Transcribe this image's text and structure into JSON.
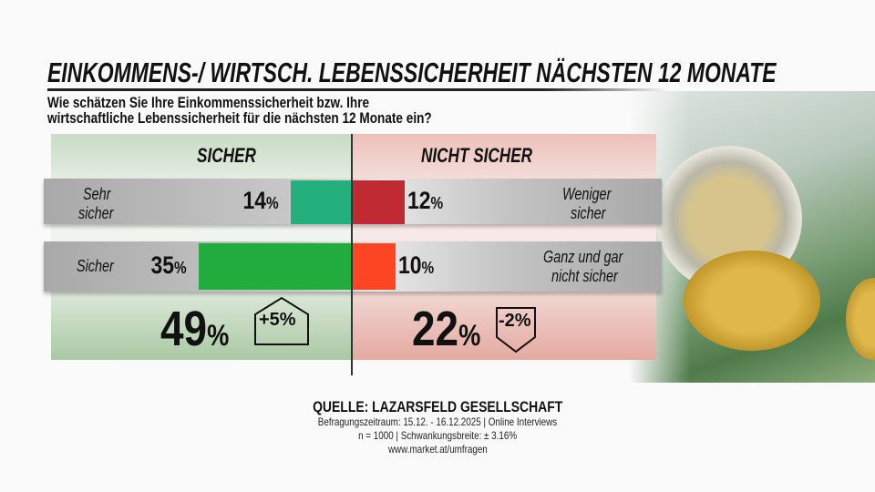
{
  "title": "EINKOMMENS-/ WIRTSCH. LEBENSSICHERHEIT NÄCHSTEN 12 MONATE",
  "subtitle_line1": "Wie schätzen Sie Ihre Einkommenssicherheit bzw. Ihre",
  "subtitle_line2": "wirtschaftliche Lebenssicherheit für die nächsten 12 Monate ein?",
  "chart_data": {
    "type": "bar",
    "orientation": "diverging-horizontal",
    "groups": [
      {
        "name": "SICHER",
        "total": "49",
        "change": "+5%",
        "color_panel": "#dbe8d7",
        "items": [
          {
            "label_line1": "Sehr",
            "label_line2": "sicher",
            "value": 14,
            "color": "#23b07c"
          },
          {
            "label_line1": "Sicher",
            "label_line2": "",
            "value": 35,
            "color": "#22ac3e"
          }
        ]
      },
      {
        "name": "NICHT SICHER",
        "total": "22",
        "change": "-2%",
        "color_panel": "#f3d6d2",
        "items": [
          {
            "label_line1": "Weniger",
            "label_line2": "sicher",
            "value": 12,
            "color": "#c02a33"
          },
          {
            "label_line1": "Ganz und gar",
            "label_line2": "nicht sicher",
            "value": 10,
            "color": "#fd4524"
          }
        ]
      }
    ],
    "unit": "%"
  },
  "footer": {
    "source": "QUELLE:  LAZARSFELD GESELLSCHAFT",
    "line1": "Befragungszeitraum:  15.12. - 16.12.2025  | Online Interviews",
    "line2": "n = 1000 |  Schwankungsbreite: ±  3.16%",
    "line3": "www.market.at/umfragen"
  }
}
